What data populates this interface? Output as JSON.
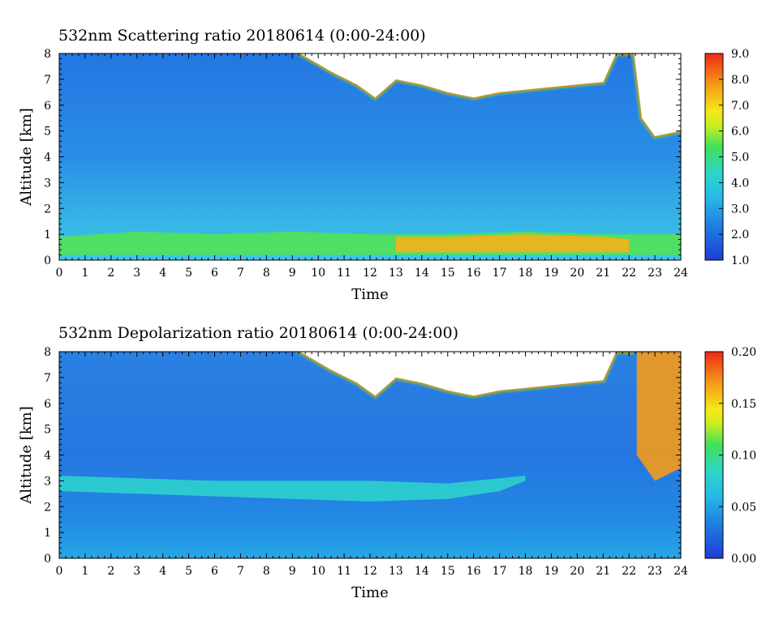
{
  "chart_data": [
    {
      "type": "heatmap",
      "title": "532nm Scattering ratio  20180614 (0:00-24:00)",
      "xlabel": "Time",
      "ylabel": "Altitude [km]",
      "xlim": [
        0,
        24
      ],
      "ylim": [
        0,
        8
      ],
      "x_ticks": [
        "0",
        "1",
        "2",
        "3",
        "4",
        "5",
        "6",
        "7",
        "8",
        "9",
        "10",
        "11",
        "12",
        "13",
        "14",
        "15",
        "16",
        "17",
        "18",
        "19",
        "20",
        "21",
        "22",
        "23",
        "24"
      ],
      "y_ticks": [
        "0",
        "1",
        "2",
        "3",
        "4",
        "5",
        "6",
        "7",
        "8"
      ],
      "colorbar": {
        "min": 1.0,
        "max": 9.0,
        "ticks": [
          "1.0",
          "2.0",
          "3.0",
          "4.0",
          "5.0",
          "6.0",
          "7.0",
          "8.0",
          "9.0"
        ]
      },
      "layers": [
        {
          "feature": "boundary-layer",
          "x": [
            0,
            3,
            6,
            9,
            12,
            13,
            15,
            18,
            21,
            24
          ],
          "y_bottom": [
            0.2,
            0.2,
            0.2,
            0.2,
            0.2,
            0.2,
            0.2,
            0.2,
            0.2,
            0.2
          ],
          "y_top": [
            0.9,
            1.1,
            1.0,
            1.1,
            1.0,
            1.0,
            1.0,
            1.1,
            1.0,
            1.0
          ],
          "value": 5.5
        },
        {
          "feature": "enhanced-core",
          "x": [
            13,
            15,
            18,
            21,
            22
          ],
          "y_bottom": [
            0.3,
            0.3,
            0.3,
            0.3,
            0.3
          ],
          "y_top": [
            0.9,
            0.9,
            1.0,
            0.9,
            0.8
          ],
          "value": 7.5
        }
      ],
      "no_data_top": {
        "x": [
          9.3,
          10.5,
          11.5,
          12.2,
          13,
          14,
          15,
          16,
          17,
          18,
          19,
          20,
          21,
          21.5,
          22.2,
          22.5,
          23,
          24
        ],
        "y": [
          8,
          7.3,
          6.8,
          6.3,
          7.0,
          6.8,
          6.5,
          6.3,
          6.5,
          6.6,
          6.7,
          6.8,
          6.9,
          8.0,
          8.0,
          5.5,
          4.8,
          5.0
        ]
      }
    },
    {
      "type": "heatmap",
      "title": "532nm Depolarization ratio  20180614 (0:00-24:00)",
      "xlabel": "Time",
      "ylabel": "Altitude [km]",
      "xlim": [
        0,
        24
      ],
      "ylim": [
        0,
        8
      ],
      "x_ticks": [
        "0",
        "1",
        "2",
        "3",
        "4",
        "5",
        "6",
        "7",
        "8",
        "9",
        "10",
        "11",
        "12",
        "13",
        "14",
        "15",
        "16",
        "17",
        "18",
        "19",
        "20",
        "21",
        "22",
        "23",
        "24"
      ],
      "y_ticks": [
        "0",
        "1",
        "2",
        "3",
        "4",
        "5",
        "6",
        "7",
        "8"
      ],
      "colorbar": {
        "min": 0.0,
        "max": 0.2,
        "ticks": [
          "0.00",
          "0.05",
          "0.10",
          "0.15",
          "0.20"
        ]
      },
      "layers": [
        {
          "feature": "aerosol-layer",
          "x": [
            0,
            3,
            6,
            9,
            12,
            15,
            17,
            18
          ],
          "y_bottom": [
            2.6,
            2.5,
            2.4,
            2.3,
            2.2,
            2.3,
            2.6,
            3.0
          ],
          "y_top": [
            3.2,
            3.1,
            3.0,
            3.0,
            3.0,
            2.9,
            3.1,
            3.2
          ],
          "value": 0.08
        },
        {
          "feature": "high-depol",
          "x": [
            22.3,
            23,
            24
          ],
          "y_bottom": [
            4.0,
            3.0,
            3.5
          ],
          "y_top": [
            8.0,
            8.0,
            8.0
          ],
          "value": 0.17
        }
      ],
      "no_data_top": {
        "x": [
          9.3,
          10.5,
          11.5,
          12.2,
          13,
          14,
          15,
          16,
          17,
          18,
          19,
          20,
          21,
          21.5,
          22.2
        ],
        "y": [
          8,
          7.3,
          6.8,
          6.3,
          7.0,
          6.8,
          6.5,
          6.3,
          6.5,
          6.6,
          6.7,
          6.8,
          6.9,
          8.0,
          8.0
        ]
      }
    }
  ]
}
